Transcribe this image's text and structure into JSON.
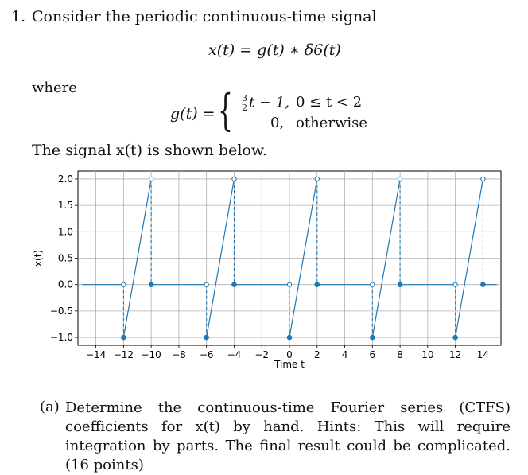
{
  "question": {
    "number": "1.",
    "intro": "Consider the periodic continuous-time signal",
    "equation_main": "x(t) = g(t) ∗ δ6(t)",
    "where": "where",
    "g_lhs": "g(t) =",
    "case1_frac_num": "3",
    "case1_frac_den": "2",
    "case1_expr": "t − 1,",
    "case1_cond": "0 ≤ t < 2",
    "case2_expr": "0,",
    "case2_cond": "otherwise",
    "shown_below": "The signal x(t) is shown below."
  },
  "part_a": {
    "label": "(a)",
    "text": "Determine the continuous-time Fourier series (CTFS) coefficients for x(t) by hand. Hints: This will require integration by parts. The final result could be complicated. (16 points)"
  },
  "chart_data": {
    "type": "line",
    "xlabel": "Time t",
    "ylabel": "x(t)",
    "xlim": [
      -15.3,
      15.3
    ],
    "ylim": [
      -1.15,
      2.15
    ],
    "xticks": [
      -14,
      -12,
      -10,
      -8,
      -6,
      -4,
      -2,
      0,
      2,
      4,
      6,
      8,
      10,
      12,
      14
    ],
    "xtick_labels": [
      "−14",
      "−12",
      "−10",
      "−8",
      "−6",
      "−4",
      "−2",
      "0",
      "2",
      "4",
      "6",
      "8",
      "10",
      "12",
      "14"
    ],
    "yticks": [
      -1.0,
      -0.5,
      0.0,
      0.5,
      1.0,
      1.5,
      2.0
    ],
    "ytick_labels": [
      "−1.0",
      "−0.5",
      "0.0",
      "0.5",
      "1.0",
      "1.5",
      "2.0"
    ],
    "grid": true,
    "color": "#1f77b4",
    "period": 6,
    "series": [
      {
        "x": [
          -15,
          -12,
          -12,
          -10,
          -10,
          -6,
          -6,
          -4,
          -4,
          0,
          0,
          2,
          2,
          6,
          6,
          8,
          8,
          12,
          12,
          14,
          14,
          15
        ],
        "y": [
          0,
          0,
          -1,
          2,
          0,
          0,
          -1,
          2,
          0,
          0,
          -1,
          2,
          0,
          0,
          -1,
          2,
          0,
          0,
          -1,
          2,
          0,
          0
        ]
      }
    ],
    "open_points": [
      {
        "x": -12,
        "y": 0
      },
      {
        "x": -10,
        "y": 2
      },
      {
        "x": -6,
        "y": 0
      },
      {
        "x": -4,
        "y": 2
      },
      {
        "x": 0,
        "y": 0
      },
      {
        "x": 2,
        "y": 2
      },
      {
        "x": 6,
        "y": 0
      },
      {
        "x": 8,
        "y": 2
      },
      {
        "x": 12,
        "y": 0
      },
      {
        "x": 14,
        "y": 2
      }
    ],
    "filled_points": [
      {
        "x": -12,
        "y": -1
      },
      {
        "x": -10,
        "y": 0
      },
      {
        "x": -6,
        "y": -1
      },
      {
        "x": -4,
        "y": 0
      },
      {
        "x": 0,
        "y": -1
      },
      {
        "x": 2,
        "y": 0
      },
      {
        "x": 6,
        "y": -1
      },
      {
        "x": 8,
        "y": 0
      },
      {
        "x": 12,
        "y": -1
      },
      {
        "x": 14,
        "y": 0
      }
    ]
  }
}
